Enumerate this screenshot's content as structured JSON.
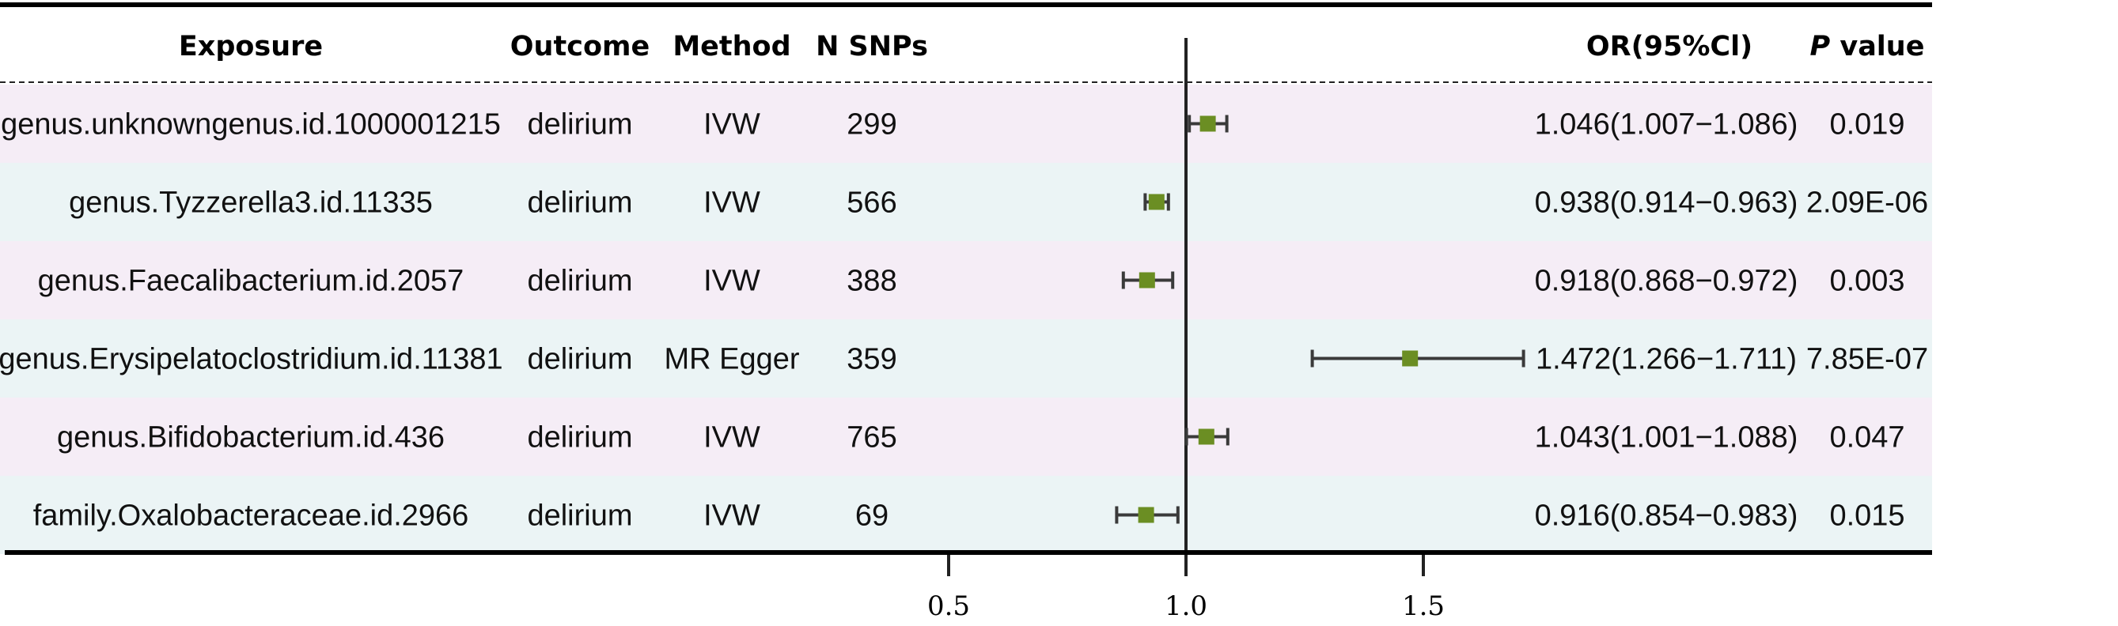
{
  "headers": {
    "exposure": "Exposure",
    "outcome": "Outcome",
    "method": "Method",
    "nsnps": "N SNPs",
    "or": "OR(95%Cl)",
    "p_italic": "P",
    "p_rest": " value"
  },
  "colors": {
    "row_pink": "#f5edf6",
    "row_cyan": "#ebf4f5",
    "marker": "#6b8e23",
    "ci_line": "#3a3a3a",
    "axis": "#222222"
  },
  "rows": [
    {
      "exposure": "genus.unknowngenus.id.1000001215",
      "outcome": "delirium",
      "method": "IVW",
      "nsnps": "299",
      "or_text": "1.046(1.007−1.086)",
      "p": "0.019"
    },
    {
      "exposure": "genus.Tyzzerella3.id.11335",
      "outcome": "delirium",
      "method": "IVW",
      "nsnps": "566",
      "or_text": "0.938(0.914−0.963)",
      "p": "2.09E-06"
    },
    {
      "exposure": "genus.Faecalibacterium.id.2057",
      "outcome": "delirium",
      "method": "IVW",
      "nsnps": "388",
      "or_text": "0.918(0.868−0.972)",
      "p": "0.003"
    },
    {
      "exposure": "genus.Erysipelatoclostridium.id.11381",
      "outcome": "delirium",
      "method": "MR Egger",
      "nsnps": "359",
      "or_text": "1.472(1.266−1.711)",
      "p": "7.85E-07"
    },
    {
      "exposure": "genus.Bifidobacterium.id.436",
      "outcome": "delirium",
      "method": "IVW",
      "nsnps": "765",
      "or_text": "1.043(1.001−1.088)",
      "p": "0.047"
    },
    {
      "exposure": "family.Oxalobacteraceae.id.2966",
      "outcome": "delirium",
      "method": "IVW",
      "nsnps": "69",
      "or_text": "0.916(0.854−0.983)",
      "p": "0.015"
    }
  ],
  "chart_data": {
    "type": "forest",
    "reference_line": 1.0,
    "xlim": [
      0.5,
      1.5
    ],
    "xticks": [
      0.5,
      1.0,
      1.5
    ],
    "xtick_labels": [
      "0.5",
      "1.0",
      "1.5"
    ],
    "points": [
      {
        "or": 1.046,
        "lower": 1.007,
        "upper": 1.086
      },
      {
        "or": 0.938,
        "lower": 0.914,
        "upper": 0.963
      },
      {
        "or": 0.918,
        "lower": 0.868,
        "upper": 0.972
      },
      {
        "or": 1.472,
        "lower": 1.266,
        "upper": 1.711
      },
      {
        "or": 1.043,
        "lower": 1.001,
        "upper": 1.088
      },
      {
        "or": 0.916,
        "lower": 0.854,
        "upper": 0.983
      }
    ]
  }
}
